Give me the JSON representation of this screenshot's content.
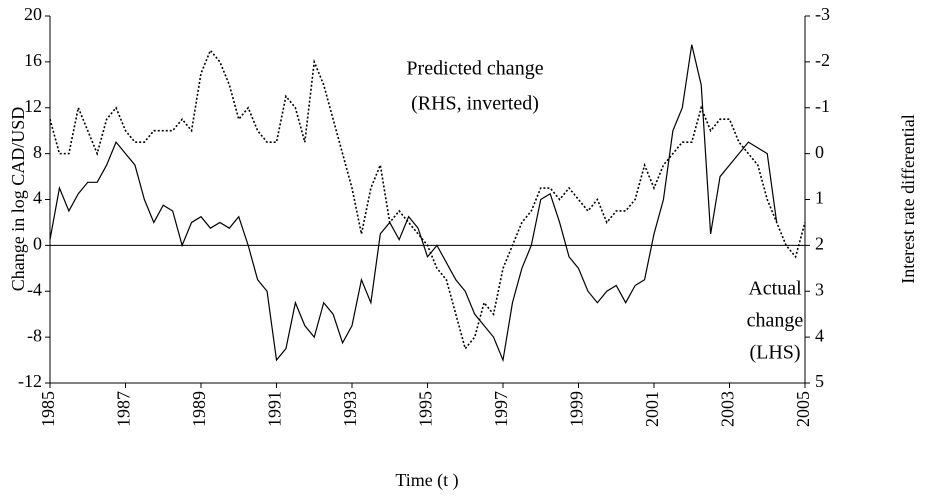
{
  "chart_data": {
    "type": "line",
    "xlabel": "Time (t )",
    "ylabel": "Change in log CAD/USD",
    "y2label": "Interest rate differential",
    "annotations": [
      {
        "lines": [
          "Predicted change",
          "(RHS, inverted)"
        ]
      },
      {
        "lines": [
          "Actual",
          "change",
          "(LHS)"
        ]
      }
    ],
    "xlim": [
      1985,
      2005
    ],
    "xticks": [
      1985,
      1987,
      1989,
      1991,
      1993,
      1995,
      1997,
      1999,
      2001,
      2003,
      2005
    ],
    "ylim": [
      -12,
      20
    ],
    "yticks": [
      -12,
      -8,
      -4,
      0,
      4,
      8,
      12,
      16,
      20
    ],
    "y2lim": [
      5,
      -3
    ],
    "y2ticks": [
      5,
      4,
      3,
      2,
      1,
      0,
      -1,
      -2,
      -3
    ],
    "x": [
      1985,
      1985.25,
      1985.5,
      1985.75,
      1986,
      1986.25,
      1986.5,
      1986.75,
      1987,
      1987.25,
      1987.5,
      1987.75,
      1988,
      1988.25,
      1988.5,
      1988.75,
      1989,
      1989.25,
      1989.5,
      1989.75,
      1990,
      1990.25,
      1990.5,
      1990.75,
      1991,
      1991.25,
      1991.5,
      1991.75,
      1992,
      1992.25,
      1992.5,
      1992.75,
      1993,
      1993.25,
      1993.5,
      1993.75,
      1994,
      1994.25,
      1994.5,
      1994.75,
      1995,
      1995.25,
      1995.5,
      1995.75,
      1996,
      1996.25,
      1996.5,
      1996.75,
      1997,
      1997.25,
      1997.5,
      1997.75,
      1998,
      1998.25,
      1998.5,
      1998.75,
      1999,
      1999.25,
      1999.5,
      1999.75,
      2000,
      2000.25,
      2000.5,
      2000.75,
      2001,
      2001.25,
      2001.5,
      2001.75,
      2002,
      2002.25,
      2002.5,
      2002.75,
      2003,
      2003.25,
      2003.5,
      2003.75,
      2004,
      2004.25,
      2004.5,
      2004.75,
      2005
    ],
    "series": [
      {
        "color": "#000000",
        "style": "solid",
        "axis": "y",
        "values": [
          0.5,
          5,
          3,
          4.5,
          5.5,
          5.5,
          7,
          9,
          8,
          7,
          4,
          2,
          3.5,
          3,
          0,
          2,
          2.5,
          1.5,
          2,
          1.5,
          2.5,
          0,
          -3,
          -4,
          -10,
          -9,
          -5,
          -7,
          -8,
          -5,
          -6,
          -8.5,
          -7,
          -3,
          -5,
          1,
          2,
          0.5,
          2.5,
          1.5,
          -1,
          0,
          -1.5,
          -3,
          -4,
          -6,
          -7,
          -8,
          -10,
          -5,
          -2,
          0,
          4,
          4.5,
          2,
          -1,
          -2,
          -4,
          -5,
          -4,
          -3.5,
          -5,
          -3.5,
          -3,
          1,
          4,
          10,
          12,
          17.5,
          14,
          1,
          6,
          7,
          8,
          9,
          8.5,
          8,
          2,
          null,
          null,
          null
        ]
      },
      {
        "color": "#000000",
        "style": "dotted",
        "axis": "y2",
        "values": [
          -0.75,
          0,
          0,
          -1,
          -0.5,
          0,
          -0.75,
          -1,
          -0.5,
          -0.25,
          -0.25,
          -0.5,
          -0.5,
          -0.5,
          -0.75,
          -0.5,
          -1.75,
          -2.25,
          -2,
          -1.5,
          -0.75,
          -1,
          -0.5,
          -0.25,
          -0.25,
          -1.25,
          -1,
          -0.25,
          -2,
          -1.5,
          -0.75,
          0,
          0.75,
          1.75,
          0.75,
          0.25,
          1.5,
          1.25,
          1.5,
          1.75,
          2,
          2.5,
          2.75,
          3.5,
          4.25,
          4,
          3.25,
          3.5,
          2.5,
          2,
          1.5,
          1.25,
          0.75,
          0.75,
          1,
          0.75,
          1,
          1.25,
          1,
          1.5,
          1.25,
          1.25,
          1,
          0.25,
          0.75,
          0.25,
          0,
          -0.25,
          -0.25,
          -1,
          -0.5,
          -0.75,
          -0.75,
          -0.25,
          0,
          0.25,
          1,
          1.5,
          2,
          2.25,
          1.5
        ]
      }
    ]
  }
}
